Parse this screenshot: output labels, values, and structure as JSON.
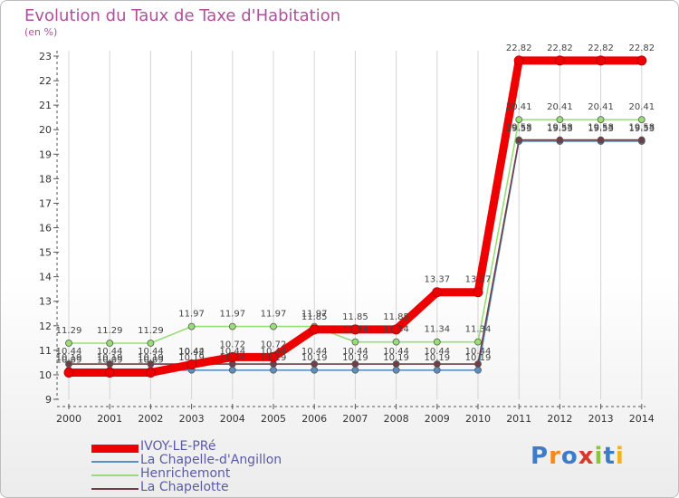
{
  "title": "Evolution du Taux de Taxe d'Habitation",
  "subtitle": "(en %)",
  "logo": "Proxiti",
  "chart_data": {
    "type": "line",
    "title": "Evolution du Taux de Taxe d'Habitation",
    "ylabel": "(en %)",
    "xlabel": "",
    "ylim": [
      9,
      23
    ],
    "grid": "vertical",
    "x": [
      "2000",
      "2001",
      "2002",
      "2003",
      "2004",
      "2005",
      "2006",
      "2007",
      "2008",
      "2009",
      "2010",
      "2011",
      "2012",
      "2013",
      "2014"
    ],
    "y_ticks": [
      "9",
      "10",
      "11",
      "12",
      "13",
      "14",
      "15",
      "16",
      "17",
      "18",
      "19",
      "20",
      "21",
      "22",
      "23"
    ],
    "series": [
      {
        "name": "IVOY-LE-PRé",
        "color": "#ee0000",
        "labels": [
          "10.09",
          "10.09",
          "10.09",
          "10.42",
          "10.72",
          "10.72",
          "11.85",
          "11.85",
          "11.85",
          "13.37",
          "13.37",
          "22.82",
          "22.82",
          "22.82",
          "22.82"
        ],
        "values": [
          10.09,
          10.09,
          10.09,
          10.42,
          10.72,
          10.72,
          11.85,
          11.85,
          11.85,
          13.37,
          13.37,
          22.82,
          22.82,
          22.82,
          22.82
        ]
      },
      {
        "name": "La Chapelle-d'Angillon",
        "color": "#5b8fbf",
        "labels": [
          "10.19",
          "10.19",
          "10.19",
          "10.19",
          "10.19",
          "10.19",
          "10.19",
          "10.19",
          "10.19",
          "10.19",
          "10.19",
          "19.53",
          "19.53",
          "19.53",
          "19.53"
        ],
        "values": [
          10.19,
          10.19,
          10.19,
          10.19,
          10.19,
          10.19,
          10.19,
          10.19,
          10.19,
          10.19,
          10.19,
          19.53,
          19.53,
          19.53,
          19.53
        ]
      },
      {
        "name": "Henrichemont",
        "color": "#99dd77",
        "labels": [
          "11.29",
          "11.29",
          "11.29",
          "11.97",
          "11.97",
          "11.97",
          "11.97",
          "11.34",
          "11.34",
          "11.34",
          "11.34",
          "20.41",
          "20.41",
          "20.41",
          "20.41"
        ],
        "values": [
          11.29,
          11.29,
          11.29,
          11.97,
          11.97,
          11.97,
          11.97,
          11.34,
          11.34,
          11.34,
          11.34,
          20.41,
          20.41,
          20.41,
          20.41
        ]
      },
      {
        "name": "La Chapelotte",
        "color": "#6e3f46",
        "labels": [
          "10.44",
          "10.44",
          "10.44",
          "10.44",
          "10.44",
          "10.44",
          "10.44",
          "10.44",
          "10.44",
          "10.44",
          "10.44",
          "19.58",
          "19.58",
          "19.58",
          "19.58"
        ],
        "values": [
          10.44,
          10.44,
          10.44,
          10.44,
          10.44,
          10.44,
          10.44,
          10.44,
          10.44,
          10.44,
          10.44,
          19.58,
          19.58,
          19.58,
          19.58
        ]
      }
    ]
  }
}
